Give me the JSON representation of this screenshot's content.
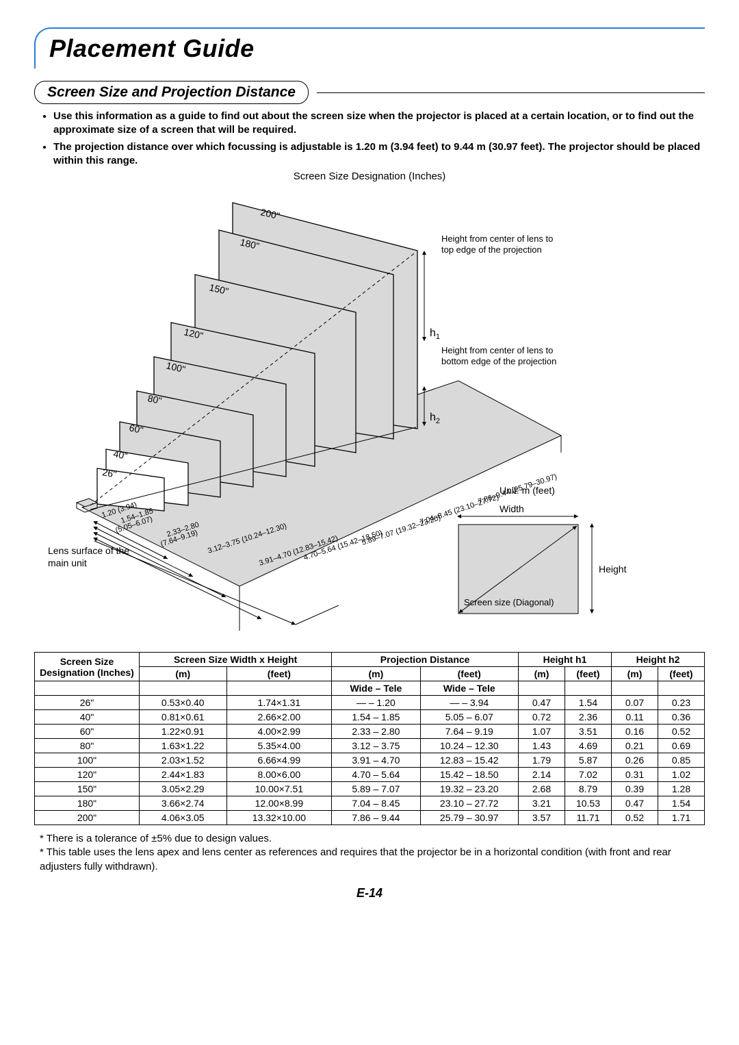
{
  "page_title": "Placement Guide",
  "section_heading": "Screen Size and Projection Distance",
  "bullets": [
    "Use this information as a guide to find out about the screen size when the projector is placed at a certain location, or to find out the approximate size of a screen that will be required.",
    "The projection distance over which focussing is adjustable is 1.20 m (3.94 feet) to 9.44 m (30.97 feet). The projector should be placed within this range."
  ],
  "diagram": {
    "top_caption": "Screen Size Designation (Inches)",
    "screen_labels": [
      "200\"",
      "180\"",
      "150\"",
      "120\"",
      "100\"",
      "80\"",
      "60\"",
      "40\"",
      "26\""
    ],
    "distance_labels": [
      "1.20 (3.94)",
      "1.54–1.85",
      "(5.05–6.07)",
      "2.33–2.80",
      "(7.64–9.19)",
      "3.12–3.75 (10.24–12.30)",
      "3.91–4.70 (12.83–15.42)",
      "4.70–5.64 (15.42–18.50)",
      "5.89–7.07 (19.32–23.20)",
      "7.04–8.45 (23.10–27.72)",
      "7.86–9.44 (25.79–30.97)"
    ],
    "lens_label": "Lens surface of the main unit",
    "h1_label": "h1",
    "h2_label": "h2",
    "h1_note": "Height from center of lens to top edge of the projection",
    "h2_note": "Height from center of lens to bottom edge of the projection",
    "unit_label": "Unit: m (feet)",
    "width_label": "Width",
    "height_label": "Height",
    "diag_label": "Screen size (Diagonal)",
    "panel_fill": "#d9d9d9",
    "stroke": "#000000"
  },
  "table": {
    "header1": [
      "Screen Size",
      "Screen Size  Width x Height",
      "Projection Distance",
      "Height h1",
      "Height h2"
    ],
    "header2": [
      "Designation (Inches)",
      "(m)",
      "(feet)",
      "(m)",
      "(feet)",
      "(m)",
      "(feet)",
      "(m)",
      "(feet)"
    ],
    "wide_tele_m": "Wide  –   Tele",
    "wide_tele_ft": "Wide  –   Tele",
    "rows": [
      {
        "d": "26\"",
        "wm": "0.53×0.40",
        "wf": "1.74×1.31",
        "pm": "—  –   1.20",
        "pf": "—  –   3.94",
        "h1m": "0.47",
        "h1f": "1.54",
        "h2m": "0.07",
        "h2f": "0.23"
      },
      {
        "d": "40\"",
        "wm": "0.81×0.61",
        "wf": "2.66×2.00",
        "pm": "1.54  –   1.85",
        "pf": "5.05  –   6.07",
        "h1m": "0.72",
        "h1f": "2.36",
        "h2m": "0.11",
        "h2f": "0.36"
      },
      {
        "d": "60\"",
        "wm": "1.22×0.91",
        "wf": "4.00×2.99",
        "pm": "2.33  –   2.80",
        "pf": "7.64  –   9.19",
        "h1m": "1.07",
        "h1f": "3.51",
        "h2m": "0.16",
        "h2f": "0.52"
      },
      {
        "d": "80\"",
        "wm": "1.63×1.22",
        "wf": "5.35×4.00",
        "pm": "3.12  –   3.75",
        "pf": "10.24  – 12.30",
        "h1m": "1.43",
        "h1f": "4.69",
        "h2m": "0.21",
        "h2f": "0.69"
      },
      {
        "d": "100\"",
        "wm": "2.03×1.52",
        "wf": "6.66×4.99",
        "pm": "3.91  –   4.70",
        "pf": "12.83  – 15.42",
        "h1m": "1.79",
        "h1f": "5.87",
        "h2m": "0.26",
        "h2f": "0.85"
      },
      {
        "d": "120\"",
        "wm": "2.44×1.83",
        "wf": "8.00×6.00",
        "pm": "4.70  –   5.64",
        "pf": "15.42  – 18.50",
        "h1m": "2.14",
        "h1f": "7.02",
        "h2m": "0.31",
        "h2f": "1.02"
      },
      {
        "d": "150\"",
        "wm": "3.05×2.29",
        "wf": "10.00×7.51",
        "pm": "5.89  –   7.07",
        "pf": "19.32  – 23.20",
        "h1m": "2.68",
        "h1f": "8.79",
        "h2m": "0.39",
        "h2f": "1.28"
      },
      {
        "d": "180\"",
        "wm": "3.66×2.74",
        "wf": "12.00×8.99",
        "pm": "7.04  –   8.45",
        "pf": "23.10  – 27.72",
        "h1m": "3.21",
        "h1f": "10.53",
        "h2m": "0.47",
        "h2f": "1.54"
      },
      {
        "d": "200\"",
        "wm": "4.06×3.05",
        "wf": "13.32×10.00",
        "pm": "7.86  –   9.44",
        "pf": "25.79  – 30.97",
        "h1m": "3.57",
        "h1f": "11.71",
        "h2m": "0.52",
        "h2f": "1.71"
      }
    ]
  },
  "footnotes": [
    "* There is a tolerance of ±5% due to design values.",
    "* This table uses the lens apex and lens center as references and requires that the projector be in a horizontal condition (with front and rear adjusters fully withdrawn)."
  ],
  "page_number": "E-14",
  "colors": {
    "title_border": "#2b7de1",
    "text": "#000000",
    "panel": "#d9d9d9"
  }
}
